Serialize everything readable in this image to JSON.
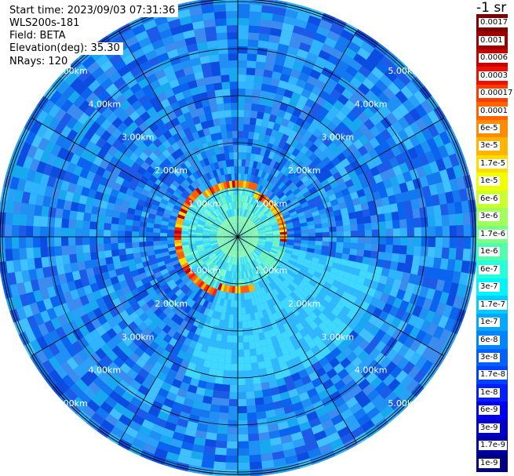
{
  "header": {
    "start_time": "Start time: 2023/09/03 07:31:36",
    "instrument": "WLS200s-181",
    "field": "Field: BETA",
    "elevation": "Elevation(deg): 35.30",
    "nrays": "NRays: 120"
  },
  "colorbar": {
    "unit_label": "-1 sr",
    "labels": [
      "0.0017",
      "0.001",
      "0.0006",
      "0.0003",
      "0.00017",
      "0.0001",
      "6e-5",
      "3e-5",
      "1.7e-5",
      "1e-5",
      "6e-6",
      "3e-6",
      "1.7e-6",
      "1e-6",
      "6e-7",
      "3e-7",
      "1.7e-7",
      "1e-7",
      "6e-8",
      "3e-8",
      "1.7e-8",
      "1e-8",
      "6e-9",
      "3e-9",
      "1.7e-9",
      "1e-9"
    ],
    "colors": [
      "#800000",
      "#9c0000",
      "#c80000",
      "#f01000",
      "#ff3c00",
      "#ff6400",
      "#ff8c00",
      "#ffb400",
      "#ffdc00",
      "#f0ff00",
      "#c8ff2c",
      "#a0ff58",
      "#78ff84",
      "#50ffae",
      "#28ffd8",
      "#00f4ff",
      "#00ccff",
      "#00a8ff",
      "#0084ff",
      "#0060ff",
      "#0040ff",
      "#0020ff",
      "#0000f0",
      "#0000c8",
      "#0000a0",
      "#000080"
    ]
  },
  "range_rings": [
    {
      "label": "1.00km",
      "range_km": 1
    },
    {
      "label": "2.00km",
      "range_km": 2
    },
    {
      "label": "3.00km",
      "range_km": 3
    },
    {
      "label": "4.00km",
      "range_km": 4
    },
    {
      "label": "5.00km",
      "range_km": 5
    }
  ],
  "ppi": {
    "max_range_km": 5.9,
    "spoke_angles_deg": [
      0,
      30,
      60,
      90,
      120,
      150,
      180,
      210,
      240,
      270,
      300,
      330
    ],
    "background_color": "#2a84f0"
  }
}
